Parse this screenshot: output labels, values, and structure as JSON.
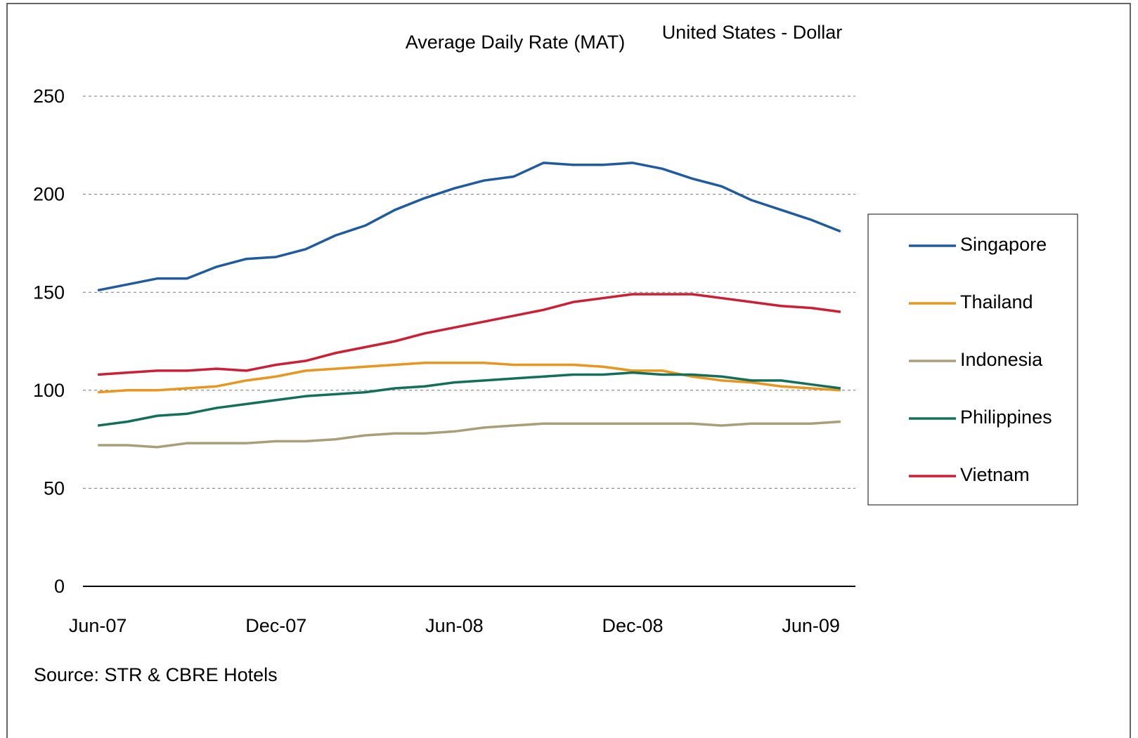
{
  "chart_data": {
    "type": "line",
    "title": "Average Daily Rate (MAT)",
    "subtitle": "United States - Dollar",
    "source": "Source: STR & CBRE Hotels",
    "categories": [
      "Jun-07",
      null,
      null,
      null,
      null,
      null,
      "Dec-07",
      null,
      null,
      null,
      null,
      null,
      "Jun-08",
      null,
      null,
      null,
      null,
      null,
      "Dec-08",
      null,
      null,
      null,
      null,
      null,
      "Jun-09",
      null
    ],
    "series": [
      {
        "name": "Singapore",
        "color": "#1f5b9e",
        "values": [
          151,
          154,
          157,
          157,
          163,
          167,
          168,
          172,
          179,
          184,
          192,
          198,
          203,
          207,
          209,
          216,
          215,
          215,
          216,
          213,
          208,
          204,
          197,
          192,
          187,
          181
        ]
      },
      {
        "name": "Thailand",
        "color": "#e8961e",
        "values": [
          99,
          100,
          100,
          101,
          102,
          105,
          107,
          110,
          111,
          112,
          113,
          114,
          114,
          114,
          113,
          113,
          113,
          112,
          110,
          110,
          107,
          105,
          104,
          102,
          101,
          100
        ]
      },
      {
        "name": "Indonesia",
        "color": "#a89f78",
        "values": [
          72,
          72,
          71,
          73,
          73,
          73,
          74,
          74,
          75,
          77,
          78,
          78,
          79,
          81,
          82,
          83,
          83,
          83,
          83,
          83,
          83,
          82,
          83,
          83,
          83,
          84
        ]
      },
      {
        "name": "Philippines",
        "color": "#12705a",
        "values": [
          82,
          84,
          87,
          88,
          91,
          93,
          95,
          97,
          98,
          99,
          101,
          102,
          104,
          105,
          106,
          107,
          108,
          108,
          109,
          108,
          108,
          107,
          105,
          105,
          103,
          101
        ]
      },
      {
        "name": "Vietnam",
        "color": "#cc1f35",
        "values": [
          108,
          109,
          110,
          110,
          111,
          110,
          113,
          115,
          119,
          122,
          125,
          129,
          132,
          135,
          138,
          141,
          145,
          147,
          149,
          149,
          149,
          147,
          145,
          143,
          142,
          140
        ]
      }
    ],
    "ylim": [
      0,
      250
    ],
    "yticks": [
      0,
      50,
      100,
      150,
      200,
      250
    ],
    "grid": true,
    "legend": "right"
  }
}
